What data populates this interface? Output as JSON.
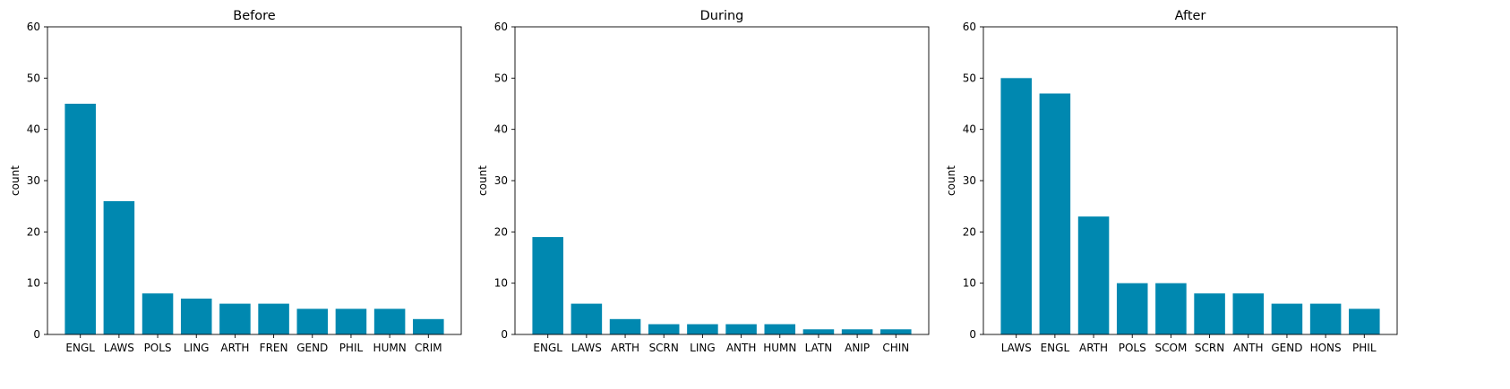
{
  "chart_data": [
    {
      "type": "bar",
      "title": "Before",
      "xlabel": "",
      "ylabel": "count",
      "ylim": [
        0,
        60
      ],
      "yticks": [
        0,
        10,
        20,
        30,
        40,
        50,
        60
      ],
      "grid": false,
      "color": "#0088b0",
      "categories": [
        "ENGL",
        "LAWS",
        "POLS",
        "LING",
        "ARTH",
        "FREN",
        "GEND",
        "PHIL",
        "HUMN",
        "CRIM"
      ],
      "values": [
        45,
        26,
        8,
        7,
        6,
        6,
        5,
        5,
        5,
        3
      ]
    },
    {
      "type": "bar",
      "title": "During",
      "xlabel": "",
      "ylabel": "count",
      "ylim": [
        0,
        60
      ],
      "yticks": [
        0,
        10,
        20,
        30,
        40,
        50,
        60
      ],
      "grid": false,
      "color": "#0088b0",
      "categories": [
        "ENGL",
        "LAWS",
        "ARTH",
        "SCRN",
        "LING",
        "ANTH",
        "HUMN",
        "LATN",
        "ANIP",
        "CHIN"
      ],
      "values": [
        19,
        6,
        3,
        2,
        2,
        2,
        2,
        1,
        1,
        1
      ]
    },
    {
      "type": "bar",
      "title": "After",
      "xlabel": "",
      "ylabel": "count",
      "ylim": [
        0,
        60
      ],
      "yticks": [
        0,
        10,
        20,
        30,
        40,
        50,
        60
      ],
      "grid": false,
      "color": "#0088b0",
      "categories": [
        "LAWS",
        "ENGL",
        "ARTH",
        "POLS",
        "SCOM",
        "SCRN",
        "ANTH",
        "GEND",
        "HONS",
        "PHIL"
      ],
      "values": [
        50,
        47,
        23,
        10,
        10,
        8,
        8,
        6,
        6,
        5
      ]
    }
  ]
}
